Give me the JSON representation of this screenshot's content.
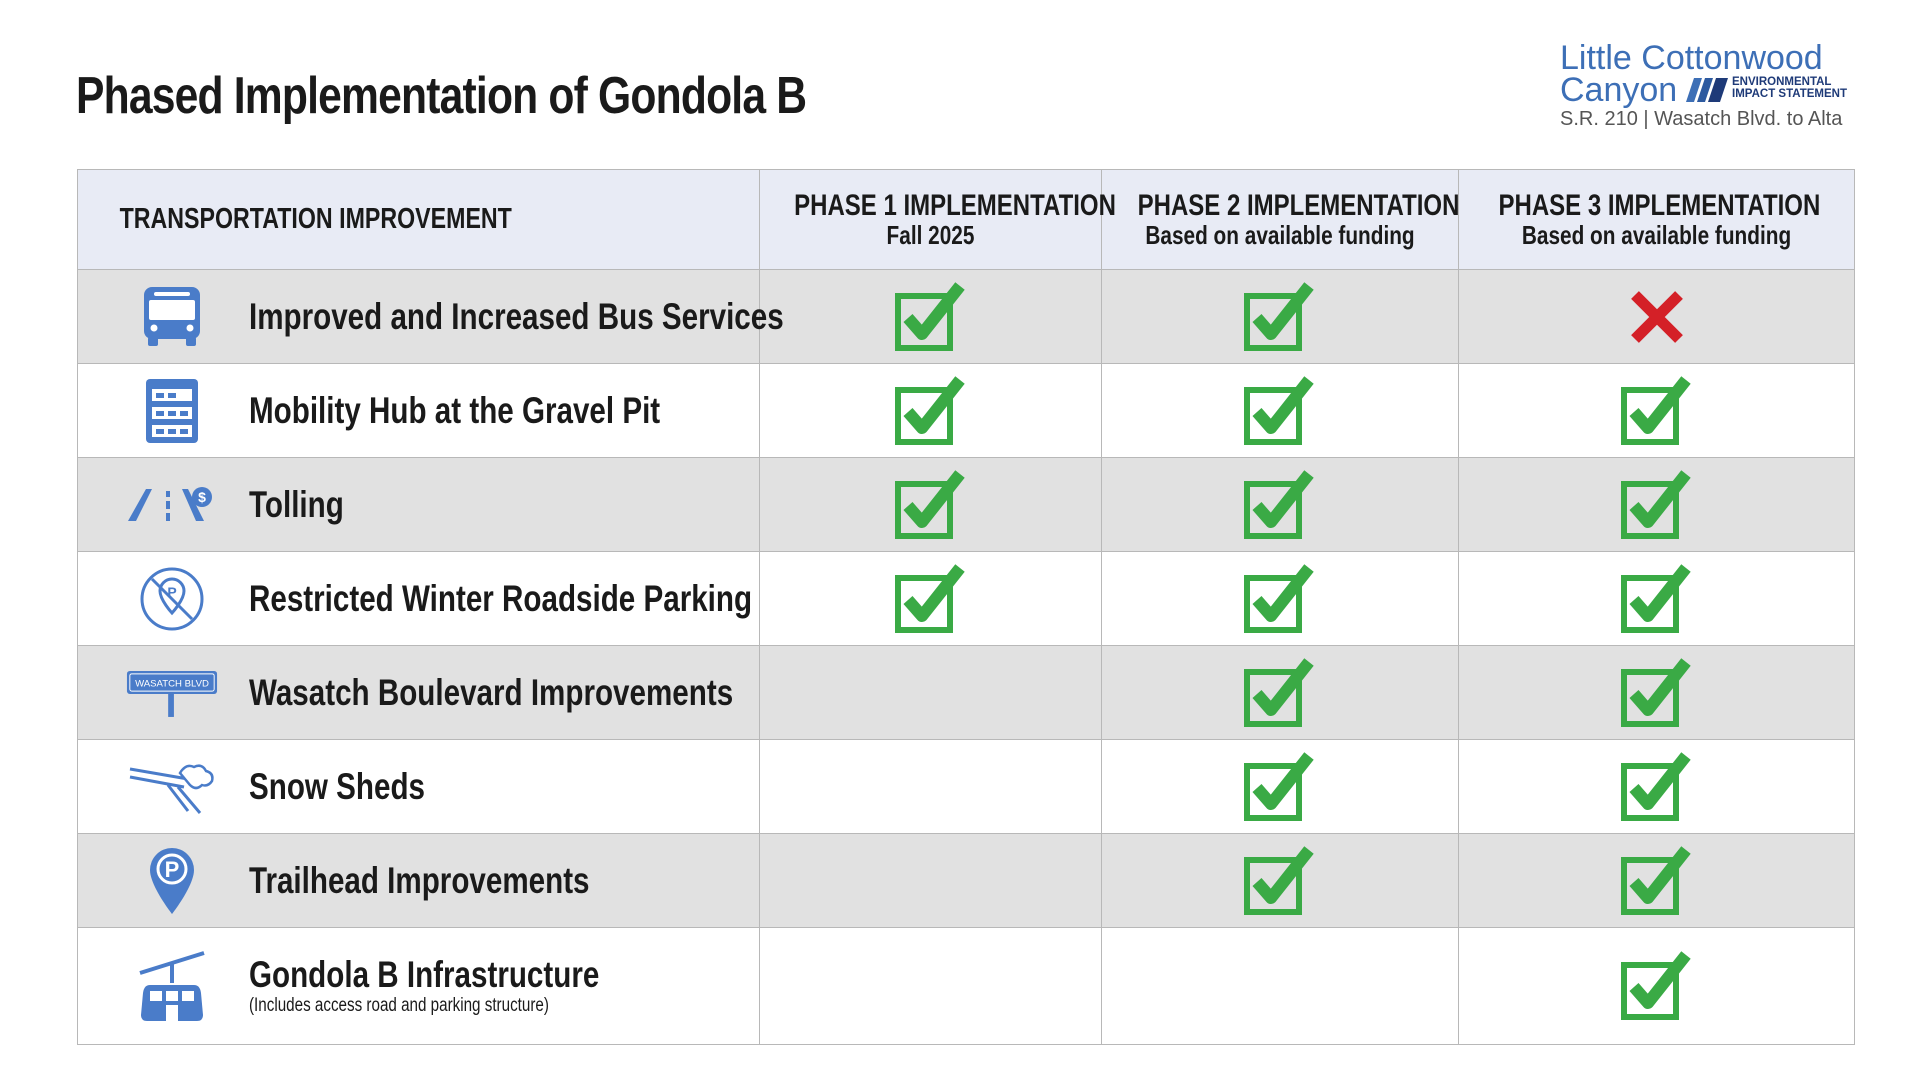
{
  "header": {
    "title": "Phased Implementation of Gondola B"
  },
  "logo": {
    "line1": "Little Cottonwood",
    "line2": "Canyon",
    "eis_line1": "ENVIRONMENTAL",
    "eis_line2": "IMPACT STATEMENT",
    "subtitle": "S.R. 210 | Wasatch Blvd. to Alta"
  },
  "table": {
    "columns": [
      {
        "title": "TRANSPORTATION IMPROVEMENT",
        "subtitle": ""
      },
      {
        "title": "PHASE 1 IMPLEMENTATION",
        "subtitle": "Fall 2025"
      },
      {
        "title": "PHASE 2 IMPLEMENTATION",
        "subtitle": "Based on available funding"
      },
      {
        "title": "PHASE 3 IMPLEMENTATION",
        "subtitle": "Based on available funding"
      }
    ],
    "rows": [
      {
        "icon": "bus-icon",
        "label": "Improved and Increased Bus Services",
        "note": "",
        "phase1": "check",
        "phase2": "check",
        "phase3": "x"
      },
      {
        "icon": "parking-structure-icon",
        "label": "Mobility Hub at the Gravel Pit",
        "note": "",
        "phase1": "check",
        "phase2": "check",
        "phase3": "check"
      },
      {
        "icon": "toll-road-icon",
        "label": "Tolling",
        "note": "",
        "phase1": "check",
        "phase2": "check",
        "phase3": "check"
      },
      {
        "icon": "no-parking-icon",
        "label": "Restricted Winter Roadside Parking",
        "note": "",
        "phase1": "check",
        "phase2": "check",
        "phase3": "check"
      },
      {
        "icon": "street-sign-icon",
        "label": "Wasatch Boulevard Improvements",
        "note": "",
        "phase1": "",
        "phase2": "check",
        "phase3": "check"
      },
      {
        "icon": "snow-shed-icon",
        "label": "Snow Sheds",
        "note": "",
        "phase1": "",
        "phase2": "check",
        "phase3": "check"
      },
      {
        "icon": "parking-pin-icon",
        "label": "Trailhead Improvements",
        "note": "",
        "phase1": "",
        "phase2": "check",
        "phase3": "check"
      },
      {
        "icon": "gondola-icon",
        "label": "Gondola B Infrastructure",
        "note": "(Includes access road and parking structure)",
        "phase1": "",
        "phase2": "",
        "phase3": "check"
      }
    ],
    "sign_text": "WASATCH BLVD"
  },
  "colors": {
    "check": "#3aaa45",
    "x": "#d42027",
    "icon": "#4a7cc9",
    "header_bg": "#e8ebf5",
    "shade_bg": "#e1e1e1"
  }
}
